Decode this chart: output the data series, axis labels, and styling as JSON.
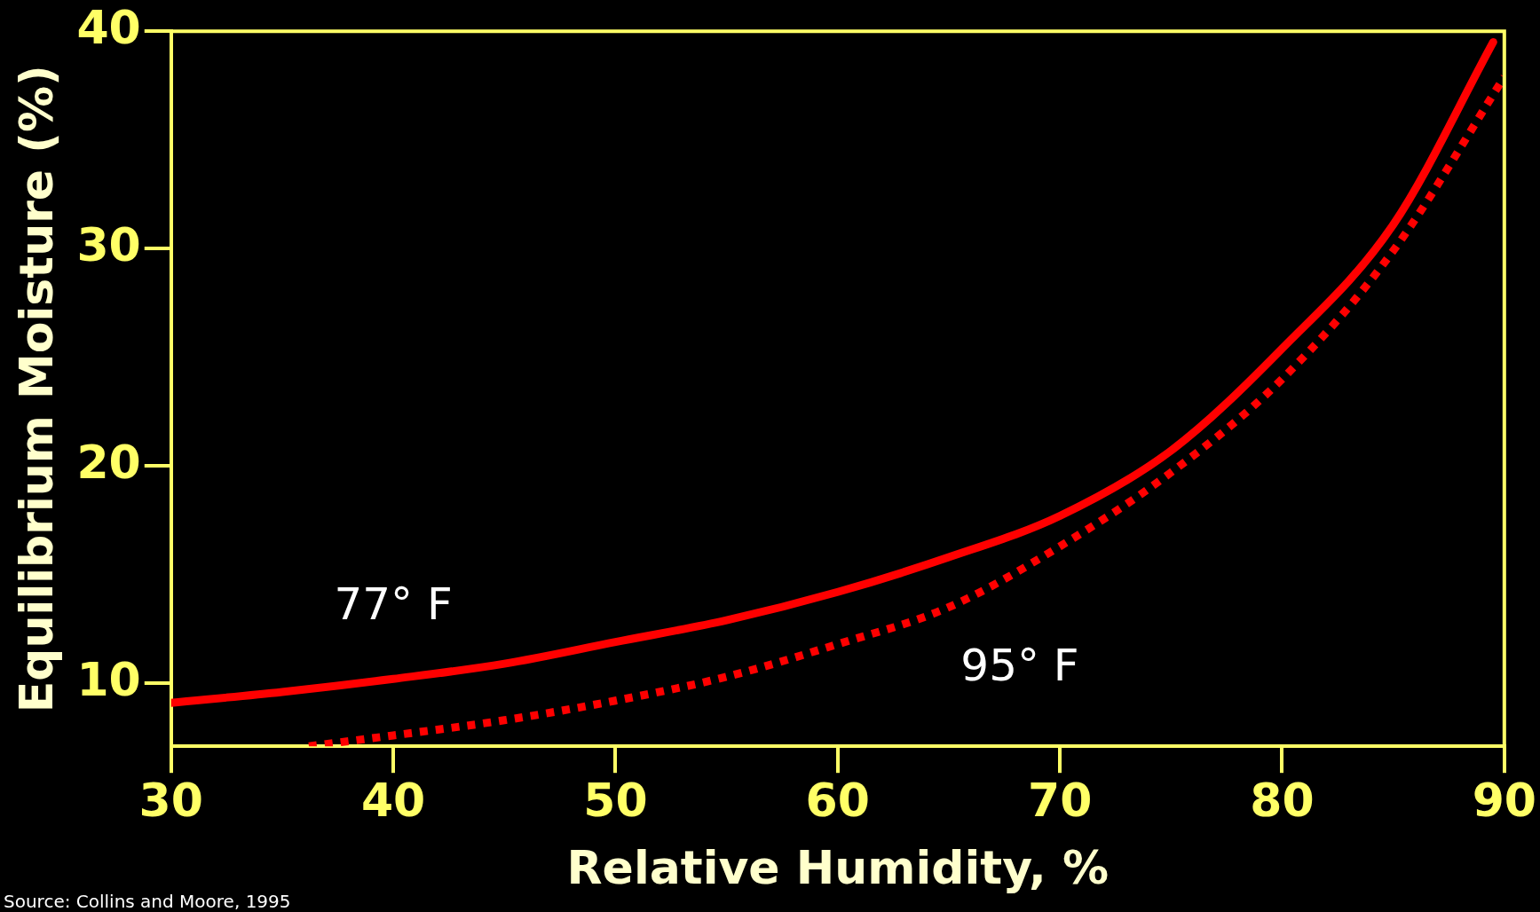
{
  "chart_data": {
    "type": "line",
    "xlabel": "Relative Humidity, %",
    "ylabel": "Equilibrium Moisture (%)",
    "xlim": [
      30,
      90
    ],
    "xticks": [
      30,
      40,
      50,
      60,
      70,
      80,
      90
    ],
    "ylim": [
      7.1,
      40
    ],
    "yticks": [
      10,
      20,
      30,
      40
    ],
    "grid": false,
    "legend": false,
    "marker": "none",
    "series": [
      {
        "name": "77° F",
        "color": "#ff0000",
        "line_style": "solid",
        "x": [
          30,
          35,
          40,
          45,
          50,
          55,
          60,
          65,
          70,
          75,
          80,
          85,
          89.5
        ],
        "values": [
          9.1,
          9.6,
          10.2,
          10.9,
          11.9,
          12.9,
          14.2,
          15.8,
          17.7,
          20.7,
          25.4,
          31.1,
          39.5
        ]
      },
      {
        "name": "95° F",
        "color": "#ff0000",
        "line_style": "dotted",
        "x": [
          36.2,
          40,
          45,
          50,
          55,
          60,
          65,
          70,
          75,
          80,
          85,
          90
        ],
        "values": [
          7.1,
          7.6,
          8.3,
          9.2,
          10.3,
          11.8,
          13.5,
          16.3,
          19.7,
          24.0,
          29.9,
          37.9
        ]
      }
    ],
    "annotations": [
      "Source: Collins and Moore, 1995"
    ]
  }
}
